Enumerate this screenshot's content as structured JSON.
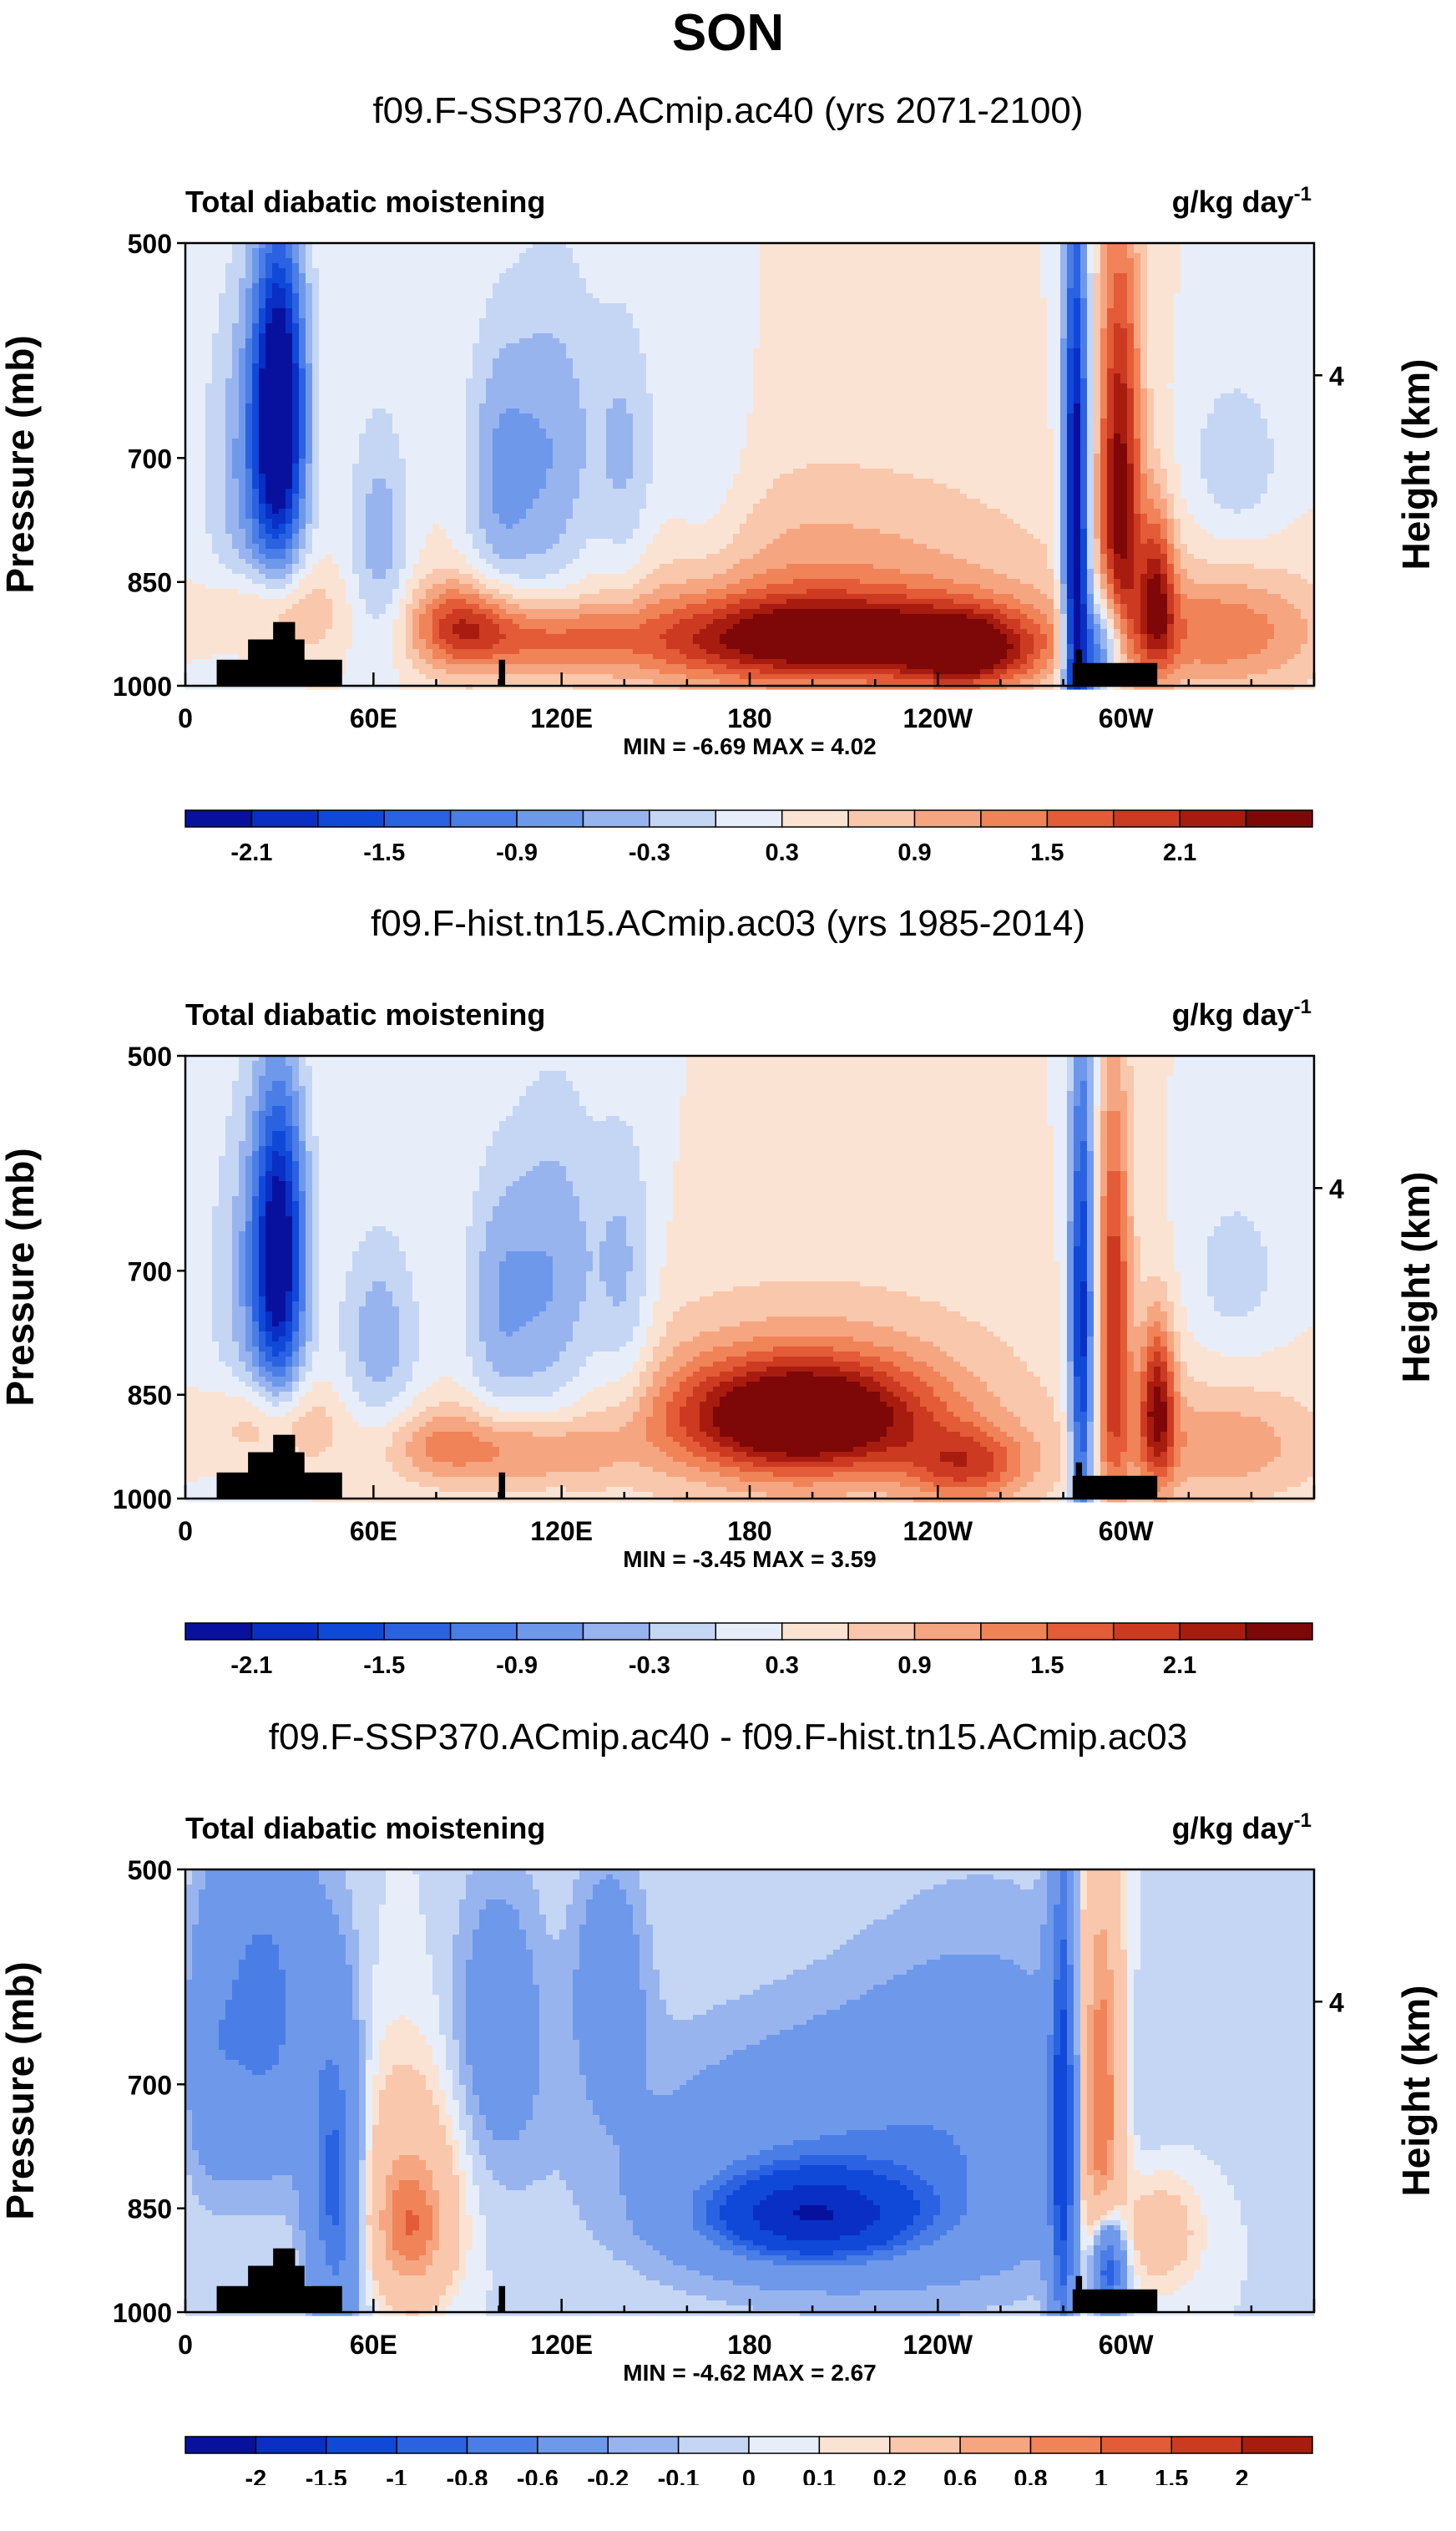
{
  "title": "SON",
  "chart_data": [
    {
      "type": "heatmap",
      "title": "f09.F-SSP370.ACmip.ac40 (yrs 2071-2100)",
      "left_string": "Total diabatic moistening",
      "units_base": "g/kg day",
      "units_exp": "-1",
      "ylabel": "Pressure (mb)",
      "ylabel_right": "Height (km)",
      "y_ticks": [
        "500",
        "700",
        "850",
        "1000"
      ],
      "y_right_ticks": [
        "4"
      ],
      "x_ticks": [
        "0",
        "60E",
        "120E",
        "180",
        "120W",
        "60W"
      ],
      "min_max": "MIN = -6.69  MAX =  4.02",
      "colorbar_labels": [
        "-2.1",
        "-1.5",
        "-0.9",
        "-0.3",
        "0.3",
        "0.9",
        "1.5",
        "2.1"
      ],
      "colorbar_levels": [
        -2.4,
        -2.1,
        -1.8,
        -1.5,
        -1.2,
        -0.9,
        -0.6,
        -0.3,
        0,
        0.3,
        0.6,
        0.9,
        1.2,
        1.5,
        1.8,
        2.1,
        2.4
      ],
      "colorbar_colors": [
        "#08119e",
        "#0a2fc4",
        "#1049d8",
        "#2a62e2",
        "#4a7ee6",
        "#6e98ea",
        "#98b4ef",
        "#c4d6f4",
        "#e8eef9",
        "#fbe3d3",
        "#f9c7ab",
        "#f5a681",
        "#f08358",
        "#e45b38",
        "#cc3a21",
        "#a81c10",
        "#7e0708"
      ],
      "features": [
        {
          "lon": 30,
          "p": 650,
          "slon": 6,
          "sp": 120,
          "v": -3.0
        },
        {
          "lon": 20,
          "p": 720,
          "slon": 10,
          "sp": 150,
          "v": -0.8
        },
        {
          "lon": 28,
          "p": 890,
          "slon": 14,
          "sp": 45,
          "v": 0.9
        },
        {
          "lon": 62,
          "p": 800,
          "slon": 7,
          "sp": 110,
          "v": -0.8
        },
        {
          "lon": 88,
          "p": 910,
          "slon": 12,
          "sp": 45,
          "v": 1.5
        },
        {
          "lon": 100,
          "p": 730,
          "slon": 8,
          "sp": 120,
          "v": -0.9
        },
        {
          "lon": 118,
          "p": 720,
          "slon": 10,
          "sp": 150,
          "v": -0.9
        },
        {
          "lon": 140,
          "p": 720,
          "slon": 7,
          "sp": 120,
          "v": -0.7
        },
        {
          "lon": 115,
          "p": 930,
          "slon": 18,
          "sp": 40,
          "v": 1.1
        },
        {
          "lon": 165,
          "p": 750,
          "slon": 12,
          "sp": 90,
          "v": -0.5
        },
        {
          "lon": 205,
          "p": 930,
          "slon": 42,
          "sp": 45,
          "v": 2.2
        },
        {
          "lon": 200,
          "p": 860,
          "slon": 55,
          "sp": 110,
          "v": 0.8
        },
        {
          "lon": 250,
          "p": 950,
          "slon": 14,
          "sp": 40,
          "v": 1.5
        },
        {
          "lon": 284,
          "p": 800,
          "slon": 3,
          "sp": 260,
          "v": -3.0
        },
        {
          "lon": 293,
          "p": 940,
          "slon": 6,
          "sp": 60,
          "v": -2.4
        },
        {
          "lon": 298,
          "p": 740,
          "slon": 5,
          "sp": 200,
          "v": 2.2
        },
        {
          "lon": 310,
          "p": 860,
          "slon": 4,
          "sp": 80,
          "v": 1.6
        },
        {
          "lon": 330,
          "p": 920,
          "slon": 25,
          "sp": 60,
          "v": 1.1
        },
        {
          "lon": 335,
          "p": 700,
          "slon": 10,
          "sp": 60,
          "v": -0.6
        }
      ]
    },
    {
      "type": "heatmap",
      "title": "f09.F-hist.tn15.ACmip.ac03 (yrs 1985-2014)",
      "left_string": "Total diabatic moistening",
      "units_base": "g/kg day",
      "units_exp": "-1",
      "ylabel": "Pressure (mb)",
      "ylabel_right": "Height (km)",
      "y_ticks": [
        "500",
        "700",
        "850",
        "1000"
      ],
      "y_right_ticks": [
        "4"
      ],
      "x_ticks": [
        "0",
        "60E",
        "120E",
        "180",
        "120W",
        "60W"
      ],
      "min_max": "MIN = -3.45  MAX =  3.59",
      "colorbar_labels": [
        "-2.1",
        "-1.5",
        "-0.9",
        "-0.3",
        "0.3",
        "0.9",
        "1.5",
        "2.1"
      ],
      "colorbar_levels": [
        -2.4,
        -2.1,
        -1.8,
        -1.5,
        -1.2,
        -0.9,
        -0.6,
        -0.3,
        0,
        0.3,
        0.6,
        0.9,
        1.2,
        1.5,
        1.8,
        2.1,
        2.4
      ],
      "colorbar_colors": [
        "#08119e",
        "#0a2fc4",
        "#1049d8",
        "#2a62e2",
        "#4a7ee6",
        "#6e98ea",
        "#98b4ef",
        "#c4d6f4",
        "#e8eef9",
        "#fbe3d3",
        "#f9c7ab",
        "#f5a681",
        "#f08358",
        "#e45b38",
        "#cc3a21",
        "#a81c10",
        "#7e0708"
      ],
      "features": [
        {
          "lon": 30,
          "p": 680,
          "slon": 6,
          "sp": 120,
          "v": -2.6
        },
        {
          "lon": 20,
          "p": 720,
          "slon": 10,
          "sp": 150,
          "v": -0.6
        },
        {
          "lon": 28,
          "p": 890,
          "slon": 14,
          "sp": 45,
          "v": 0.9
        },
        {
          "lon": 62,
          "p": 780,
          "slon": 9,
          "sp": 90,
          "v": -0.8
        },
        {
          "lon": 82,
          "p": 920,
          "slon": 15,
          "sp": 40,
          "v": 0.9
        },
        {
          "lon": 100,
          "p": 740,
          "slon": 8,
          "sp": 110,
          "v": -0.8
        },
        {
          "lon": 118,
          "p": 720,
          "slon": 10,
          "sp": 140,
          "v": -0.9
        },
        {
          "lon": 140,
          "p": 720,
          "slon": 7,
          "sp": 120,
          "v": -0.7
        },
        {
          "lon": 115,
          "p": 930,
          "slon": 18,
          "sp": 40,
          "v": 0.9
        },
        {
          "lon": 196,
          "p": 880,
          "slon": 28,
          "sp": 55,
          "v": 2.5
        },
        {
          "lon": 200,
          "p": 860,
          "slon": 50,
          "sp": 110,
          "v": 0.7
        },
        {
          "lon": 250,
          "p": 950,
          "slon": 14,
          "sp": 40,
          "v": 1.3
        },
        {
          "lon": 286,
          "p": 780,
          "slon": 3,
          "sp": 230,
          "v": -2.4
        },
        {
          "lon": 296,
          "p": 740,
          "slon": 4,
          "sp": 180,
          "v": 1.7
        },
        {
          "lon": 310,
          "p": 860,
          "slon": 4,
          "sp": 80,
          "v": 1.9
        },
        {
          "lon": 330,
          "p": 920,
          "slon": 25,
          "sp": 60,
          "v": 0.8
        },
        {
          "lon": 335,
          "p": 700,
          "slon": 10,
          "sp": 60,
          "v": -0.5
        }
      ]
    },
    {
      "type": "heatmap",
      "title": "f09.F-SSP370.ACmip.ac40 - f09.F-hist.tn15.ACmip.ac03",
      "left_string": "Total diabatic moistening",
      "units_base": "g/kg day",
      "units_exp": "-1",
      "ylabel": "Pressure (mb)",
      "ylabel_right": "Height (km)",
      "y_ticks": [
        "500",
        "700",
        "850",
        "1000"
      ],
      "y_right_ticks": [
        "4"
      ],
      "x_ticks": [
        "0",
        "60E",
        "120E",
        "180",
        "120W",
        "60W"
      ],
      "min_max": "MIN = -4.62  MAX =  2.67",
      "colorbar_labels": [
        "-2",
        "-1.5",
        "-1",
        "-0.8",
        "-0.6",
        "-0.2",
        "-0.1",
        "0",
        "0.1",
        "0.2",
        "0.6",
        "0.8",
        "1",
        "1.5",
        "2"
      ],
      "colorbar_levels": [
        -2,
        -1.5,
        -1,
        -0.8,
        -0.6,
        -0.2,
        -0.1,
        0,
        0.1,
        0.2,
        0.6,
        0.8,
        1,
        1.5,
        2
      ],
      "colorbar_colors": [
        "#08119e",
        "#0a2fc4",
        "#1049d8",
        "#2a62e2",
        "#4a7ee6",
        "#6e98ea",
        "#98b4ef",
        "#c4d6f4",
        "#e8eef9",
        "#fbe3d3",
        "#f9c7ab",
        "#f5a681",
        "#f08358",
        "#e45b38",
        "#cc3a21",
        "#a81c10"
      ],
      "features": [
        {
          "lon": 25,
          "p": 620,
          "slon": 12,
          "sp": 120,
          "v": -0.7
        },
        {
          "lon": 8,
          "p": 680,
          "slon": 6,
          "sp": 100,
          "v": -0.3
        },
        {
          "lon": 48,
          "p": 820,
          "slon": 6,
          "sp": 140,
          "v": -0.9
        },
        {
          "lon": 72,
          "p": 880,
          "slon": 9,
          "sp": 70,
          "v": 0.9
        },
        {
          "lon": 70,
          "p": 760,
          "slon": 12,
          "sp": 90,
          "v": 0.3
        },
        {
          "lon": 100,
          "p": 640,
          "slon": 10,
          "sp": 100,
          "v": -0.4
        },
        {
          "lon": 135,
          "p": 600,
          "slon": 8,
          "sp": 80,
          "v": -0.4
        },
        {
          "lon": 200,
          "p": 860,
          "slon": 22,
          "sp": 40,
          "v": -1.6
        },
        {
          "lon": 205,
          "p": 800,
          "slon": 45,
          "sp": 110,
          "v": -0.5
        },
        {
          "lon": 280,
          "p": 760,
          "slon": 3,
          "sp": 250,
          "v": -1.0
        },
        {
          "lon": 292,
          "p": 740,
          "slon": 5,
          "sp": 180,
          "v": 1.2
        },
        {
          "lon": 294,
          "p": 930,
          "slon": 4,
          "sp": 60,
          "v": -1.5
        },
        {
          "lon": 255,
          "p": 720,
          "slon": 30,
          "sp": 140,
          "v": -0.3
        },
        {
          "lon": 310,
          "p": 880,
          "slon": 10,
          "sp": 60,
          "v": 0.4
        }
      ]
    }
  ]
}
